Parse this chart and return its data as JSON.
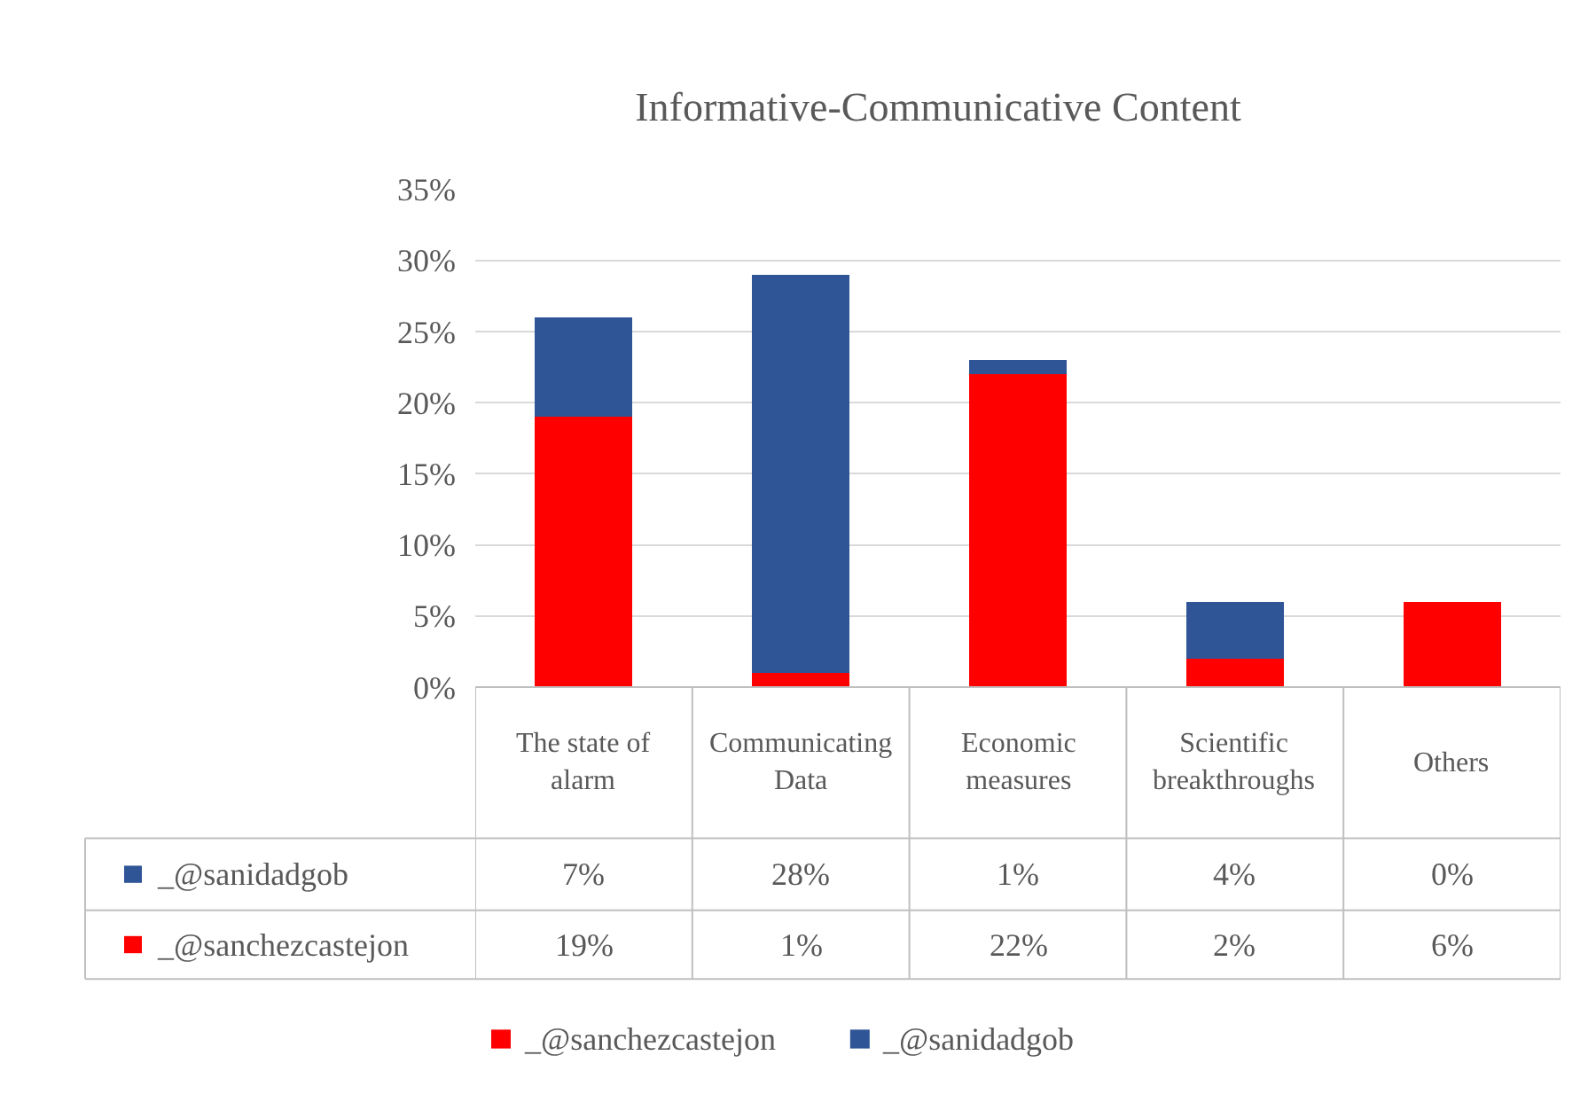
{
  "chart_data": {
    "type": "bar",
    "title": "Informative-Communicative Content",
    "stacked": true,
    "categories": [
      "The state of alarm",
      "Communicating Data",
      "Economic measures",
      "Scientific breakthroughs",
      "Others"
    ],
    "series": [
      {
        "name": "_@sanchezcastejon",
        "color": "#ff0000",
        "values": [
          19,
          1,
          22,
          2,
          6
        ],
        "value_labels": [
          "19%",
          "1%",
          "22%",
          "2%",
          "6%"
        ]
      },
      {
        "name": "_@sanidadgob",
        "color": "#2f5597",
        "values": [
          7,
          28,
          1,
          4,
          0
        ],
        "value_labels": [
          "7%",
          "28%",
          "1%",
          "4%",
          "0%"
        ]
      }
    ],
    "ylim": [
      0,
      35
    ],
    "yticks": [
      {
        "value": 0,
        "label": "0%"
      },
      {
        "value": 5,
        "label": "5%"
      },
      {
        "value": 10,
        "label": "10%"
      },
      {
        "value": 15,
        "label": "15%"
      },
      {
        "value": 20,
        "label": "20%"
      },
      {
        "value": 25,
        "label": "25%"
      },
      {
        "value": 30,
        "label": "30%"
      },
      {
        "value": 35,
        "label": "35%"
      }
    ],
    "grid": "y",
    "legend": "bottom"
  }
}
